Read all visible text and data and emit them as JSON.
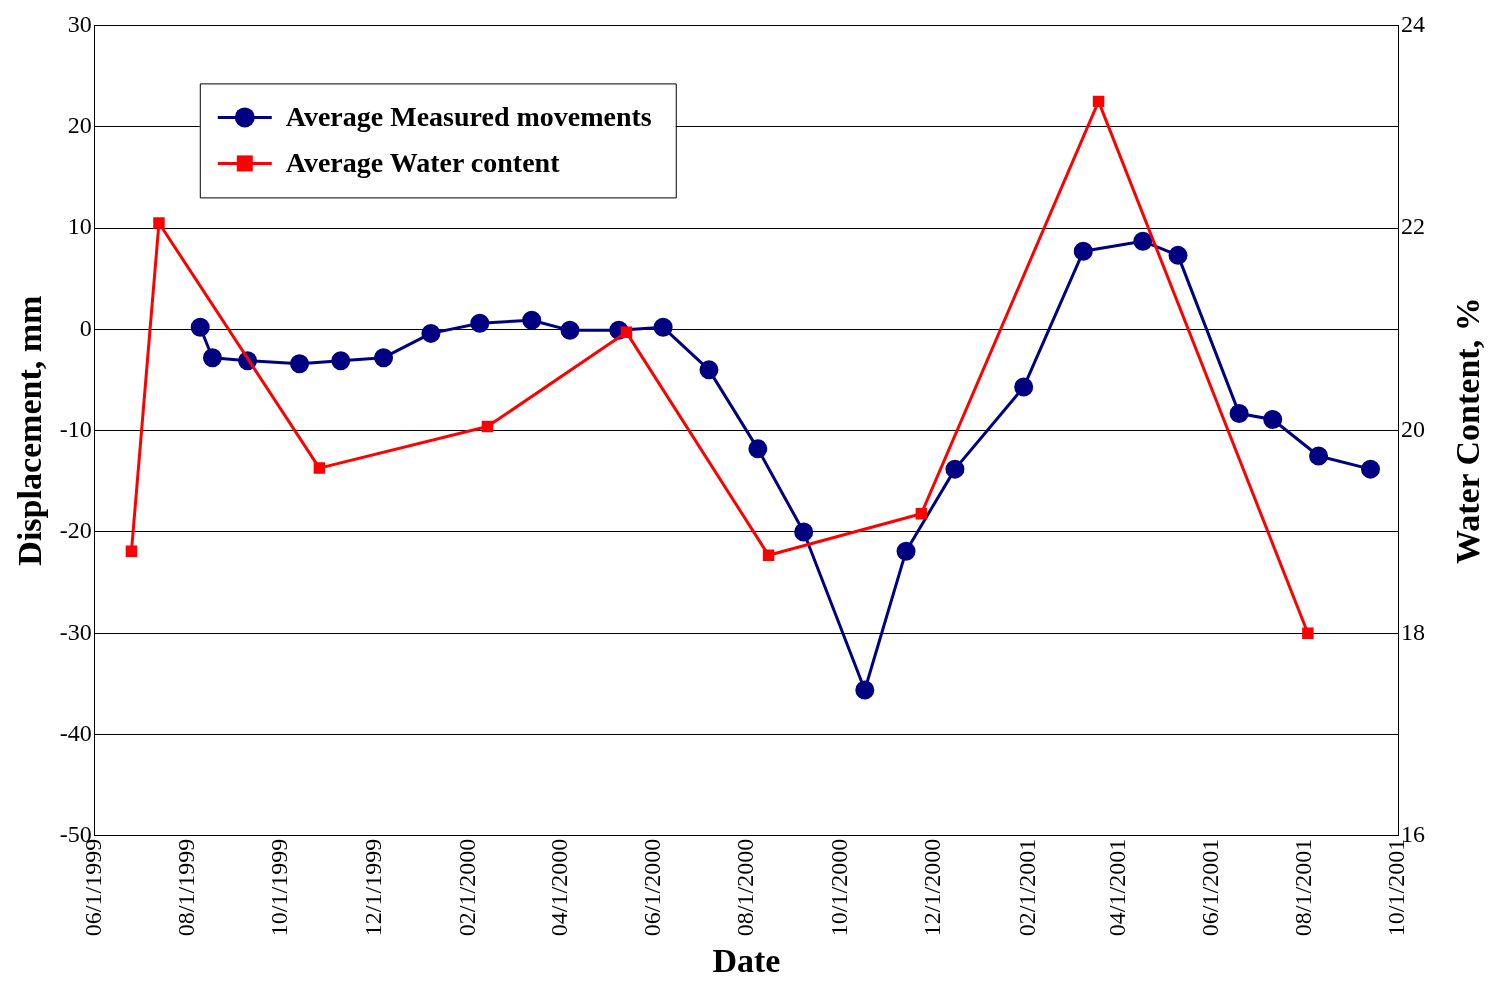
{
  "chart_data": {
    "type": "line",
    "xlabel": "Date",
    "ylabel": "Displacement, mm",
    "y2label": "Water Content, %",
    "xlim": [
      "1999-06-01",
      "2001-10-01"
    ],
    "xticks": [
      {
        "value": "1999-06-01",
        "label": "06/1/1999"
      },
      {
        "value": "1999-08-01",
        "label": "08/1/1999"
      },
      {
        "value": "1999-10-01",
        "label": "10/1/1999"
      },
      {
        "value": "1999-12-01",
        "label": "12/1/1999"
      },
      {
        "value": "2000-02-01",
        "label": "02/1/2000"
      },
      {
        "value": "2000-04-01",
        "label": "04/1/2000"
      },
      {
        "value": "2000-06-01",
        "label": "06/1/2000"
      },
      {
        "value": "2000-08-01",
        "label": "08/1/2000"
      },
      {
        "value": "2000-10-01",
        "label": "10/1/2000"
      },
      {
        "value": "2000-12-01",
        "label": "12/1/2000"
      },
      {
        "value": "2001-02-01",
        "label": "02/1/2001"
      },
      {
        "value": "2001-04-01",
        "label": "04/1/2001"
      },
      {
        "value": "2001-06-01",
        "label": "06/1/2001"
      },
      {
        "value": "2001-08-01",
        "label": "08/1/2001"
      },
      {
        "value": "2001-10-01",
        "label": "10/1/2001"
      }
    ],
    "ylim": [
      -50,
      30
    ],
    "yticks": [
      -50,
      -40,
      -30,
      -20,
      -10,
      0,
      10,
      20,
      30
    ],
    "y2lim": [
      16,
      24
    ],
    "y2ticks": [
      16,
      18,
      20,
      22,
      24
    ],
    "grid": "y",
    "legend": "top left",
    "line_style": "solid",
    "series": [
      {
        "name": "Average Measured movements",
        "color": "#000080",
        "marker": "circle",
        "x": [
          "1999-08-09",
          "1999-08-17",
          "1999-09-09",
          "1999-10-13",
          "1999-11-09",
          "1999-12-07",
          "2000-01-07",
          "2000-02-08",
          "2000-03-13",
          "2000-04-07",
          "2000-05-09",
          "2000-06-07",
          "2000-07-07",
          "2000-08-08",
          "2000-09-07",
          "2000-10-17",
          "2000-11-13",
          "2000-12-15",
          "2001-01-29",
          "2001-03-09",
          "2001-04-17",
          "2001-05-10",
          "2001-06-19",
          "2001-07-11",
          "2001-08-10",
          "2001-09-13"
        ],
        "values": [
          0.2,
          -2.8,
          -3.1,
          -3.4,
          -3.1,
          -2.8,
          -0.4,
          0.6,
          0.9,
          -0.1,
          -0.1,
          0.2,
          -4,
          -11.8,
          -20,
          -35.6,
          -21.9,
          -13.8,
          -5.7,
          7.7,
          8.7,
          7.3,
          -8.3,
          -8.9,
          -12.5,
          -13.8
        ]
      },
      {
        "name": "Average Water content",
        "color": "#ff0000",
        "marker": "square",
        "axis": "y2",
        "x": [
          "1999-06-25",
          "1999-07-13",
          "1999-10-26",
          "2000-02-13",
          "2000-05-14",
          "2000-08-15",
          "2000-11-23",
          "2001-03-19",
          "2001-08-03"
        ],
        "values": [
          18.81,
          22.05,
          19.63,
          20.04,
          20.97,
          18.77,
          19.18,
          23.25,
          18.0
        ]
      }
    ]
  }
}
